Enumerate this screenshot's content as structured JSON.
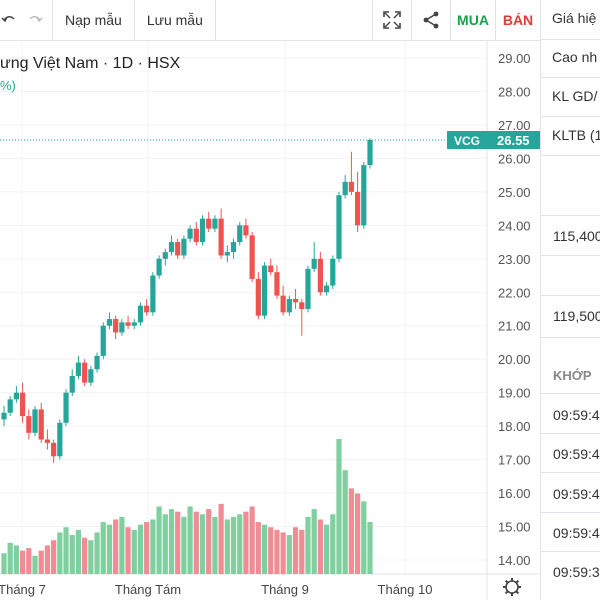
{
  "toolbar": {
    "undo_icon": "undo-icon",
    "redo_icon": "redo-icon",
    "load_template": "Nạp mẫu",
    "save_template": "Lưu mẫu",
    "fullscreen_icon": "fullscreen-icon",
    "share_icon": "share-icon",
    "buy": "MUA",
    "sell": "BÁN"
  },
  "chart": {
    "symbol_title": "ưng Việt Nam · 1D · HSX",
    "change_text": "%)",
    "price_tag_symbol": "VCG",
    "price_tag_value": "26.55",
    "settings_icon": "gear-icon",
    "colors": {
      "up": "#26a69a",
      "down": "#ef5350",
      "tag": "#26a69a"
    }
  },
  "side_panel": {
    "rows": [
      "Giá hiệ",
      "Cao nh",
      "KL GD/",
      "KLTB (1"
    ],
    "value1": "115,400",
    "value2": "119,500",
    "section": "KHỚP",
    "times": [
      "09:59:4",
      "09:59:4",
      "09:59:4",
      "09:59:4",
      "09:59:3"
    ]
  },
  "chart_data": {
    "type": "candlestick",
    "y_ticks": [
      "29.00",
      "28.00",
      "27.00",
      "26.00",
      "25.00",
      "24.00",
      "23.00",
      "22.00",
      "21.00",
      "20.00",
      "19.00",
      "18.00",
      "17.00",
      "16.00",
      "15.00",
      "14.00"
    ],
    "ylim": [
      13.8,
      29.4
    ],
    "x_labels": [
      "Tháng 7",
      "Tháng Tám",
      "Tháng 9",
      "Tháng 10"
    ],
    "last_price": 26.55,
    "candles": [
      [
        18.2,
        18.6,
        18.0,
        18.4
      ],
      [
        18.4,
        18.9,
        18.3,
        18.8
      ],
      [
        18.8,
        19.2,
        18.7,
        19.0
      ],
      [
        19.0,
        19.3,
        18.1,
        18.3
      ],
      [
        18.3,
        18.5,
        17.6,
        17.8
      ],
      [
        17.8,
        18.6,
        17.7,
        18.5
      ],
      [
        18.5,
        18.7,
        17.5,
        17.6
      ],
      [
        17.6,
        17.9,
        17.3,
        17.5
      ],
      [
        17.5,
        17.6,
        16.9,
        17.1
      ],
      [
        17.1,
        18.2,
        17.0,
        18.1
      ],
      [
        18.1,
        19.1,
        18.0,
        19.0
      ],
      [
        19.0,
        19.7,
        18.9,
        19.5
      ],
      [
        19.5,
        20.1,
        19.4,
        19.9
      ],
      [
        19.9,
        20.0,
        19.2,
        19.3
      ],
      [
        19.3,
        19.8,
        19.2,
        19.7
      ],
      [
        19.7,
        20.2,
        19.6,
        20.1
      ],
      [
        20.1,
        21.1,
        20.0,
        21.0
      ],
      [
        21.0,
        21.4,
        20.9,
        21.2
      ],
      [
        21.2,
        21.3,
        20.6,
        20.8
      ],
      [
        20.8,
        21.2,
        20.7,
        21.1
      ],
      [
        21.1,
        21.3,
        20.9,
        21.0
      ],
      [
        21.0,
        21.2,
        20.9,
        21.1
      ],
      [
        21.1,
        21.7,
        21.0,
        21.6
      ],
      [
        21.6,
        21.8,
        21.3,
        21.4
      ],
      [
        21.4,
        22.6,
        21.3,
        22.5
      ],
      [
        22.5,
        23.1,
        22.4,
        23.0
      ],
      [
        23.0,
        23.3,
        22.8,
        23.2
      ],
      [
        23.2,
        23.7,
        23.1,
        23.5
      ],
      [
        23.5,
        23.6,
        23.0,
        23.1
      ],
      [
        23.1,
        23.7,
        23.0,
        23.6
      ],
      [
        23.6,
        24.0,
        23.5,
        23.9
      ],
      [
        23.9,
        24.1,
        23.4,
        23.5
      ],
      [
        23.5,
        24.3,
        23.4,
        24.2
      ],
      [
        24.2,
        24.4,
        23.8,
        23.9
      ],
      [
        23.9,
        24.3,
        23.8,
        24.2
      ],
      [
        24.2,
        24.5,
        23.0,
        23.1
      ],
      [
        23.1,
        23.4,
        22.9,
        23.2
      ],
      [
        23.2,
        23.6,
        23.0,
        23.5
      ],
      [
        23.5,
        24.1,
        23.4,
        24.0
      ],
      [
        24.0,
        24.2,
        23.6,
        23.7
      ],
      [
        23.7,
        23.8,
        22.3,
        22.4
      ],
      [
        22.4,
        22.6,
        21.2,
        21.3
      ],
      [
        21.3,
        22.9,
        21.2,
        22.8
      ],
      [
        22.8,
        23.0,
        22.5,
        22.6
      ],
      [
        22.6,
        22.8,
        21.8,
        21.9
      ],
      [
        21.9,
        22.2,
        21.3,
        21.4
      ],
      [
        21.4,
        21.9,
        21.3,
        21.8
      ],
      [
        21.8,
        22.1,
        21.5,
        21.7
      ],
      [
        21.7,
        21.8,
        20.7,
        21.5
      ],
      [
        21.5,
        22.8,
        21.4,
        22.7
      ],
      [
        22.7,
        23.5,
        22.6,
        23.0
      ],
      [
        23.0,
        23.2,
        21.9,
        22.0
      ],
      [
        22.0,
        22.3,
        21.9,
        22.2
      ],
      [
        22.2,
        23.1,
        22.1,
        23.0
      ],
      [
        23.0,
        25.0,
        22.9,
        24.9
      ],
      [
        24.9,
        25.5,
        24.8,
        25.3
      ],
      [
        25.3,
        26.2,
        24.9,
        25.0
      ],
      [
        25.0,
        25.6,
        23.8,
        24.0
      ],
      [
        24.0,
        25.9,
        23.9,
        25.8
      ],
      [
        25.8,
        26.6,
        25.7,
        26.55
      ]
    ],
    "volumes": [
      8,
      12,
      11,
      9,
      10,
      7,
      9,
      11,
      13,
      16,
      18,
      15,
      17,
      14,
      13,
      16,
      20,
      19,
      21,
      22,
      18,
      17,
      19,
      20,
      21,
      26,
      23,
      25,
      24,
      22,
      26,
      24,
      23,
      25,
      22,
      27,
      21,
      22,
      23,
      24,
      26,
      20,
      19,
      18,
      17,
      16,
      15,
      18,
      17,
      22,
      25,
      21,
      19,
      23,
      52,
      40,
      33,
      31,
      28,
      20
    ]
  }
}
